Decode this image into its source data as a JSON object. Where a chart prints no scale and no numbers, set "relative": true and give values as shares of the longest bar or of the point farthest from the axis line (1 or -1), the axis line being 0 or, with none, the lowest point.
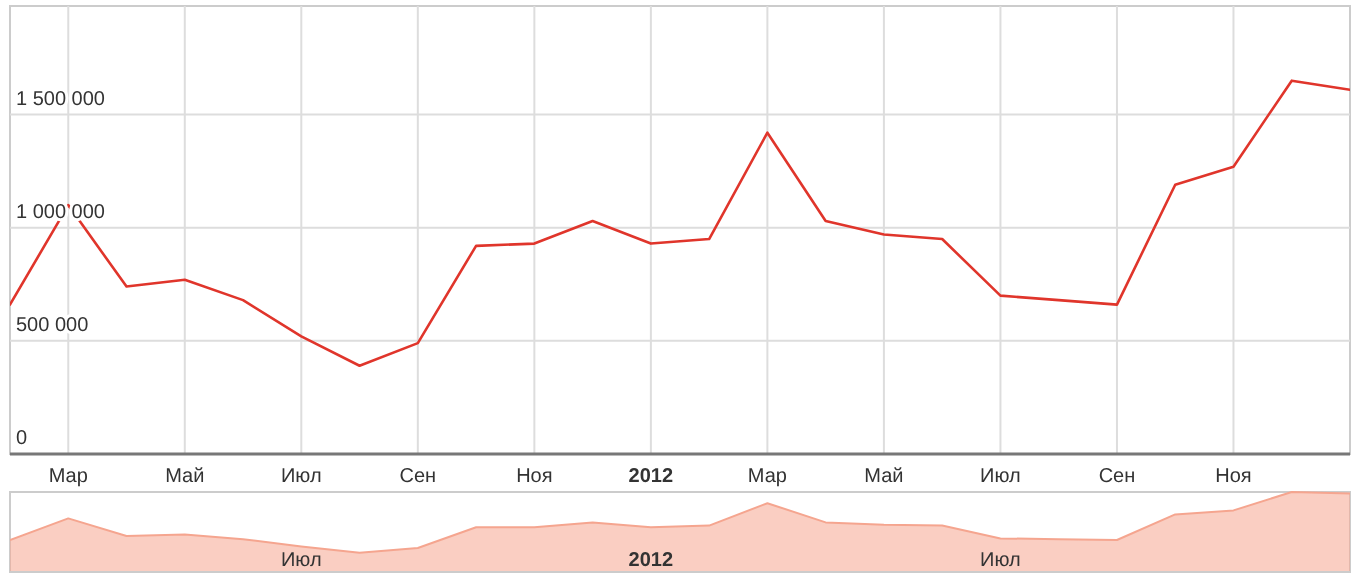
{
  "chart_data": [
    {
      "type": "line",
      "categories": [
        null,
        "Мар",
        null,
        "Май",
        null,
        "Июл",
        null,
        "Сен",
        null,
        "Ноя",
        null,
        "2012",
        null,
        "Мар",
        null,
        "Май",
        null,
        "Июл",
        null,
        "Сен",
        null,
        "Ноя",
        null,
        null
      ],
      "series": [
        {
          "color": "#e0352b",
          "values": [
            660000,
            1100000,
            740000,
            770000,
            680000,
            520000,
            390000,
            490000,
            920000,
            930000,
            1030000,
            930000,
            950000,
            1420000,
            1030000,
            970000,
            950000,
            700000,
            680000,
            660000,
            1190000,
            1270000,
            1650000,
            1610000
          ]
        }
      ],
      "ylim": [
        0,
        1980000
      ],
      "yticks": [
        0,
        {
          "value": 500000,
          "label": "500 000"
        },
        {
          "value": 1000000,
          "label": "1 000 000"
        },
        {
          "value": 1500000,
          "label": "1 500 000"
        }
      ],
      "grid": true
    },
    {
      "type": "area",
      "categories": [
        null,
        null,
        null,
        null,
        null,
        "Июл",
        null,
        null,
        null,
        null,
        null,
        "2012",
        null,
        null,
        null,
        null,
        null,
        "Июл",
        null,
        null,
        null,
        null,
        null,
        null
      ],
      "series": [
        {
          "color": "#f5a58f",
          "values": [
            0.4,
            0.67,
            0.45,
            0.47,
            0.41,
            0.32,
            0.24,
            0.3,
            0.56,
            0.56,
            0.62,
            0.56,
            0.58,
            0.86,
            0.62,
            0.59,
            0.58,
            0.42,
            0.41,
            0.4,
            0.72,
            0.77,
            1,
            0.98
          ]
        }
      ],
      "relative": true,
      "tick_labels": "x"
    }
  ]
}
